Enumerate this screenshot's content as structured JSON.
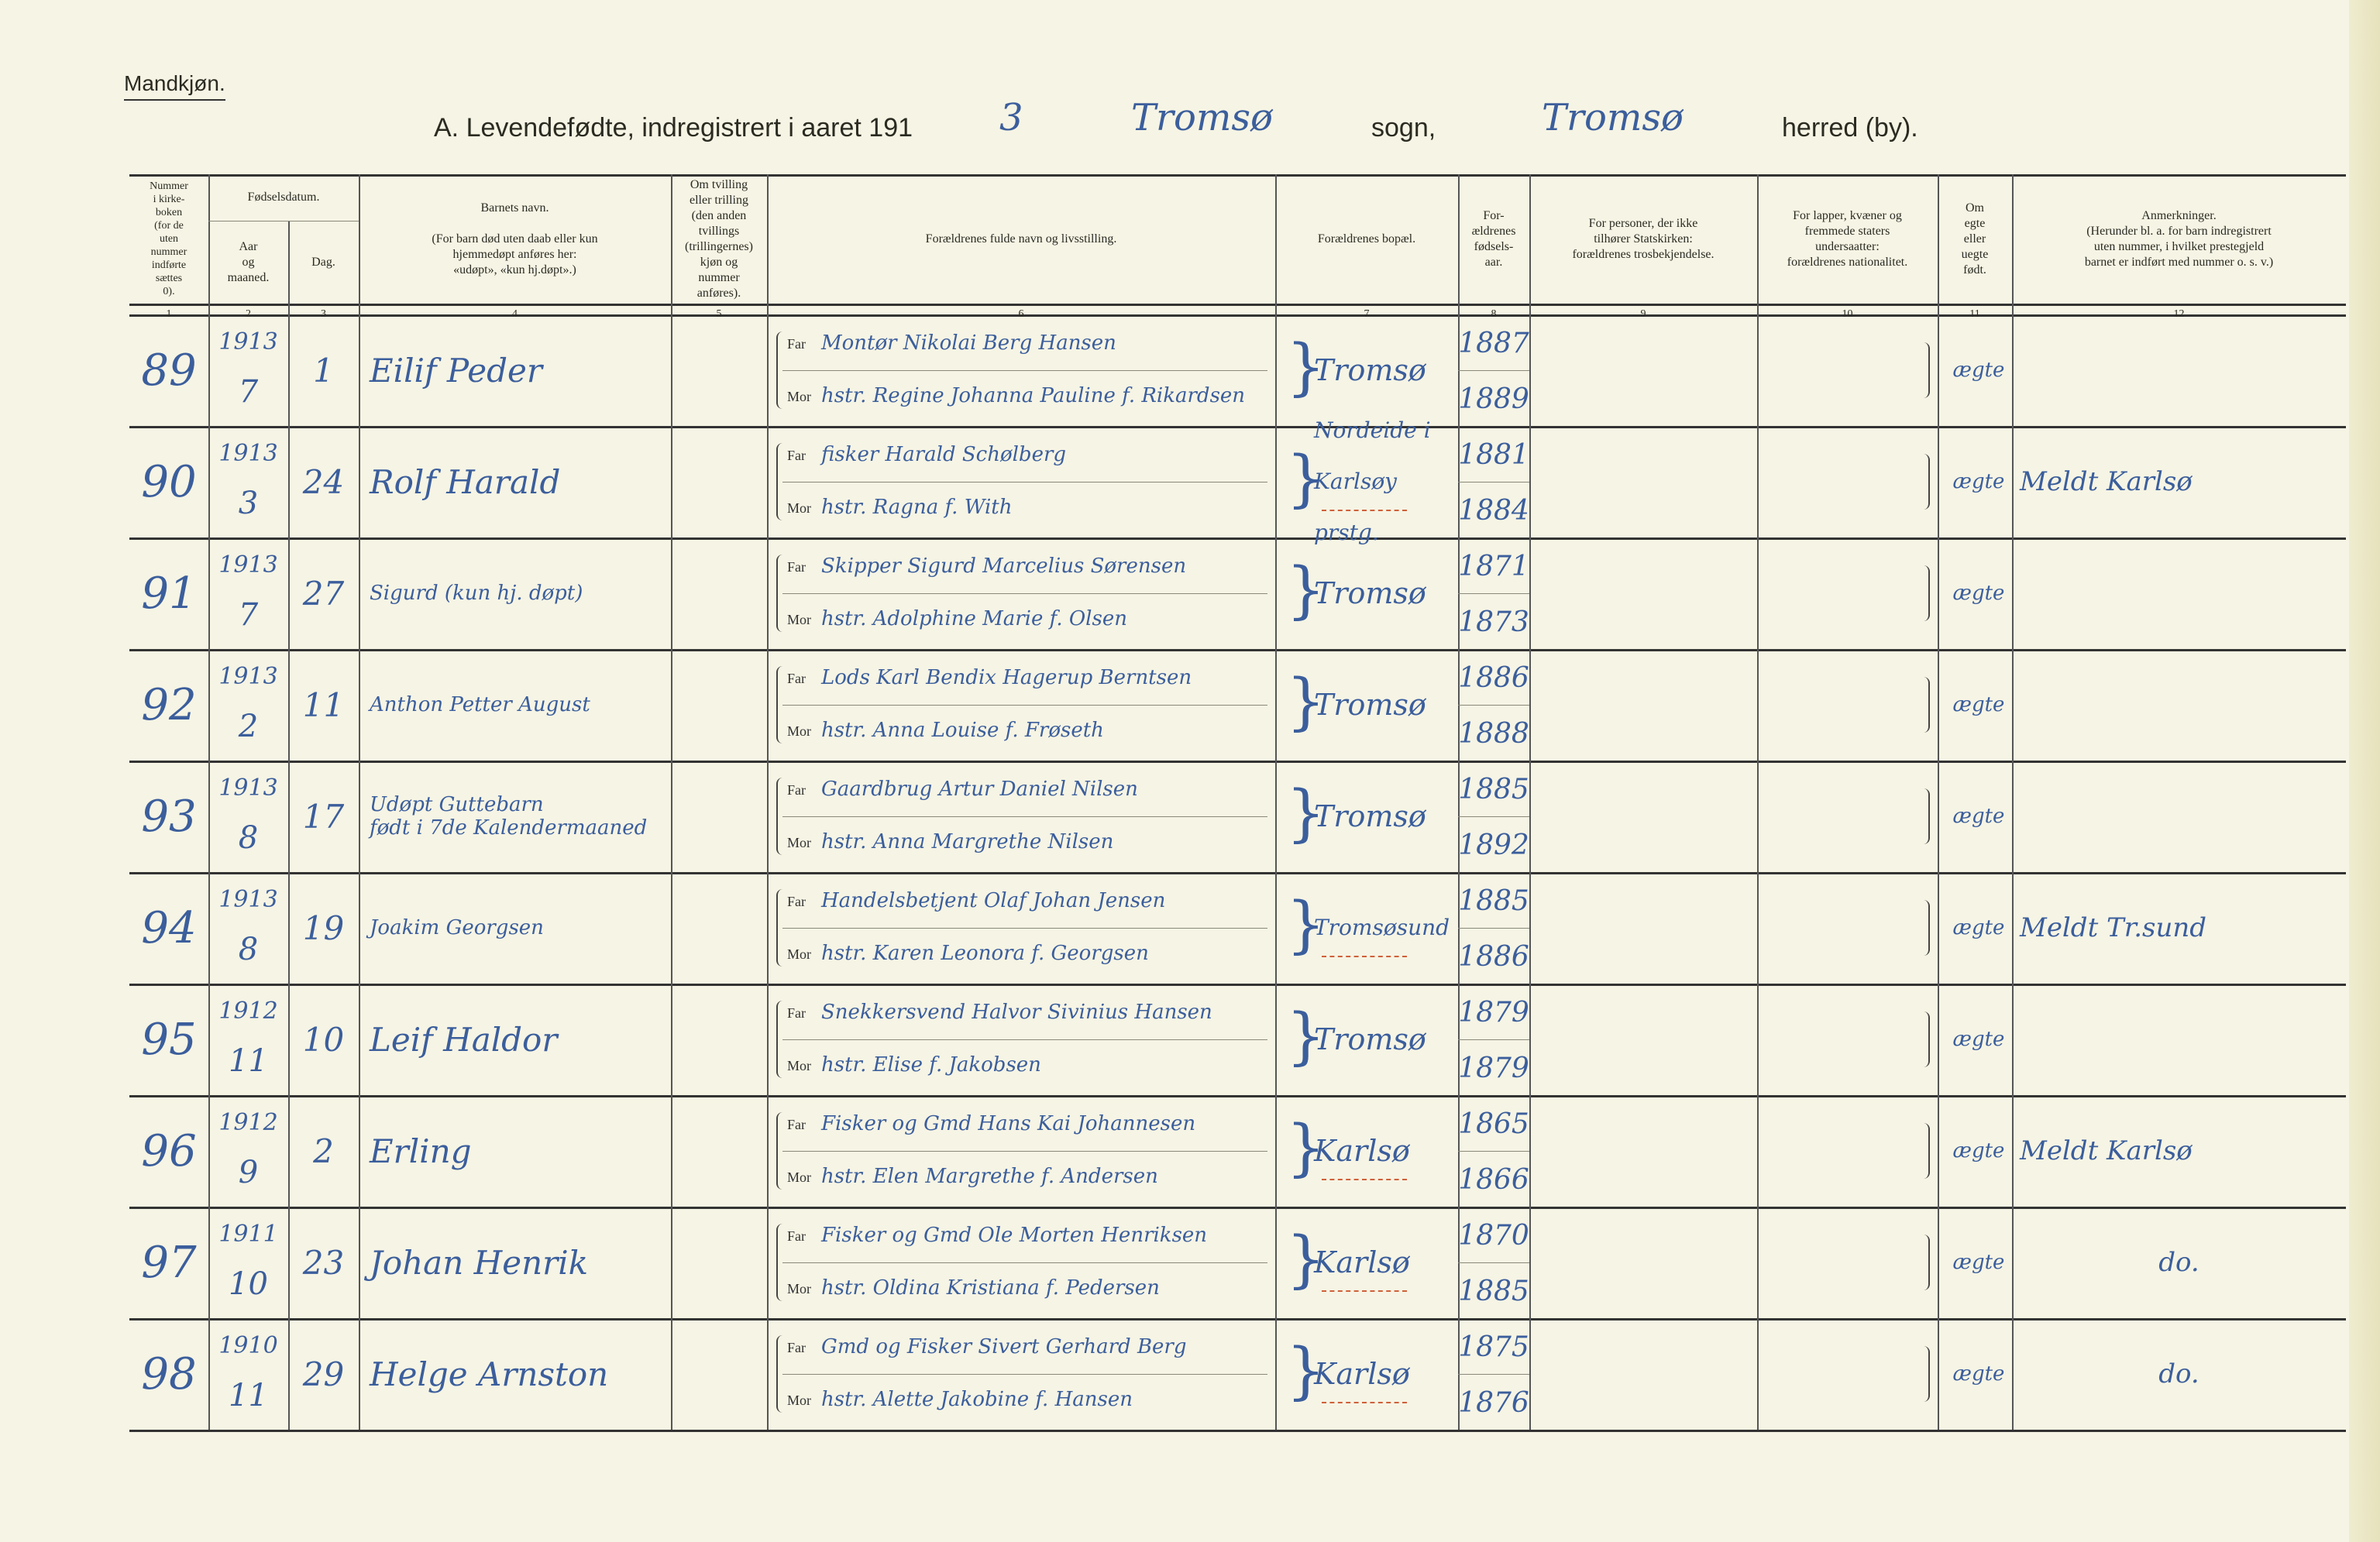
{
  "corner_label": "Mandkjøn.",
  "title": {
    "prefix": "A. Levendefødte, indregistrert i aaret 191",
    "year_digit": "3",
    "sogn_value": "Tromsø",
    "sogn_label": "sogn,",
    "herred_value": "Tromsø",
    "herred_label": "herred (by)."
  },
  "headers": [
    {
      "num": "1",
      "text": "Nummer\ni kirke-\nboken\n(for de\nuten\nnummer\nindførte\nsættes\n0)."
    },
    {
      "num": "2",
      "text": "Aar\nog\nmaaned."
    },
    {
      "num": "3",
      "text": "Dag."
    },
    {
      "num": "4",
      "text": "Barnets navn.\n\n(For barn død uten daab eller kun\nhjemmedøpt anføres her:\n«udøpt», «kun hj.døpt».)"
    },
    {
      "num": "5",
      "text": "Om tvilling\neller trilling\n(den anden\ntvillings\n(trillingernes)\nkjøn og\nnummer\nanføres)."
    },
    {
      "num": "6",
      "text": "Forældrenes fulde navn og livsstilling."
    },
    {
      "num": "7",
      "text": "Forældrenes bopæl."
    },
    {
      "num": "8",
      "text": "For-\nældrenes\nfødsels-\naar."
    },
    {
      "num": "9",
      "text": "For personer, der ikke\ntilhører Statskirken:\nforældrenes trosbekjendelse."
    },
    {
      "num": "10",
      "text": "For lapper, kvæner og\nfremmede staters\nundersaatter:\nforældrenes nationalitet."
    },
    {
      "num": "11",
      "text": "Om\negte\neller\nuegte\nfødt."
    },
    {
      "num": "12",
      "text": "Anmerkninger.\n(Herunder bl. a. for barn indregistrert\nuten nummer, i hvilket prestegjeld\nbarnet er indført med nummer o. s. v.)"
    }
  ],
  "birth_date_group": "Fødselsdatum.",
  "far_label": "Far",
  "mor_label": "Mor",
  "rows": [
    {
      "num": "89",
      "year": "1913",
      "month": "7",
      "day": "1",
      "name": "Eilif Peder",
      "far": "Montør Nikolai Berg Hansen",
      "mor": "hstr. Regine Johanna Pauline f. Rikardsen",
      "bopael": "Tromsø",
      "far_year": "1887",
      "mor_year": "1889",
      "legit": "ægte",
      "remark": ""
    },
    {
      "num": "90",
      "year": "1913",
      "month": "3",
      "day": "24",
      "name": "Rolf Harald",
      "far": "fisker Harald Schølberg",
      "mor": "hstr. Ragna f. With",
      "bopael": "Nordeide i\nKarlsøy prstg.",
      "far_year": "1881",
      "mor_year": "1884",
      "legit": "ægte",
      "remark": "Meldt Karlsø"
    },
    {
      "num": "91",
      "year": "1913",
      "month": "7",
      "day": "27",
      "name": "Sigurd (kun hj. døpt)",
      "far": "Skipper Sigurd Marcelius Sørensen",
      "mor": "hstr. Adolphine Marie f. Olsen",
      "bopael": "Tromsø",
      "far_year": "1871",
      "mor_year": "1873",
      "legit": "ægte",
      "remark": ""
    },
    {
      "num": "92",
      "year": "1913",
      "month": "2",
      "day": "11",
      "name": "Anthon Petter August",
      "far": "Lods Karl Bendix Hagerup Berntsen",
      "mor": "hstr. Anna Louise f. Frøseth",
      "bopael": "Tromsø",
      "far_year": "1886",
      "mor_year": "1888",
      "legit": "ægte",
      "remark": ""
    },
    {
      "num": "93",
      "year": "1913",
      "month": "8",
      "day": "17",
      "name": "Udøpt Guttebarn\nfødt i 7de Kalendermaaned",
      "far": "Gaardbrug Artur Daniel Nilsen",
      "mor": "hstr. Anna Margrethe Nilsen",
      "bopael": "Tromsø",
      "far_year": "1885",
      "mor_year": "1892",
      "legit": "ægte",
      "remark": ""
    },
    {
      "num": "94",
      "year": "1913",
      "month": "8",
      "day": "19",
      "name": "Joakim Georgsen",
      "far": "Handelsbetjent Olaf Johan Jensen",
      "mor": "hstr. Karen Leonora f. Georgsen",
      "bopael": "Tromsøsund",
      "far_year": "1885",
      "mor_year": "1886",
      "legit": "ægte",
      "remark": "Meldt Tr.sund"
    },
    {
      "num": "95",
      "year": "1912",
      "month": "11",
      "day": "10",
      "name": "Leif Haldor",
      "far": "Snekkersvend Halvor Sivinius Hansen",
      "mor": "hstr. Elise f. Jakobsen",
      "bopael": "Tromsø",
      "far_year": "1879",
      "mor_year": "1879",
      "legit": "ægte",
      "remark": ""
    },
    {
      "num": "96",
      "year": "1912",
      "month": "9",
      "day": "2",
      "name": "Erling",
      "far": "Fisker og Gmd Hans Kai Johannesen",
      "mor": "hstr. Elen Margrethe f. Andersen",
      "bopael": "Karlsø",
      "far_year": "1865",
      "mor_year": "1866",
      "legit": "ægte",
      "remark": "Meldt Karlsø"
    },
    {
      "num": "97",
      "year": "1911",
      "month": "10",
      "day": "23",
      "name": "Johan Henrik",
      "far": "Fisker og Gmd Ole Morten Henriksen",
      "mor": "hstr. Oldina Kristiana f. Pedersen",
      "bopael": "Karlsø",
      "far_year": "1870",
      "mor_year": "1885",
      "legit": "ægte",
      "remark": "do."
    },
    {
      "num": "98",
      "year": "1910",
      "month": "11",
      "day": "29",
      "name": "Helge Arnston",
      "far": "Gmd og Fisker Sivert Gerhard Berg",
      "mor": "hstr. Alette Jakobine f. Hansen",
      "bopael": "Karlsø",
      "far_year": "1875",
      "mor_year": "1876",
      "legit": "ægte",
      "remark": "do."
    }
  ],
  "colors": {
    "paper": "#f6f4e4",
    "ink": "#3b5e9c",
    "print": "#2b2b22",
    "red_pencil": "#d0603a"
  }
}
